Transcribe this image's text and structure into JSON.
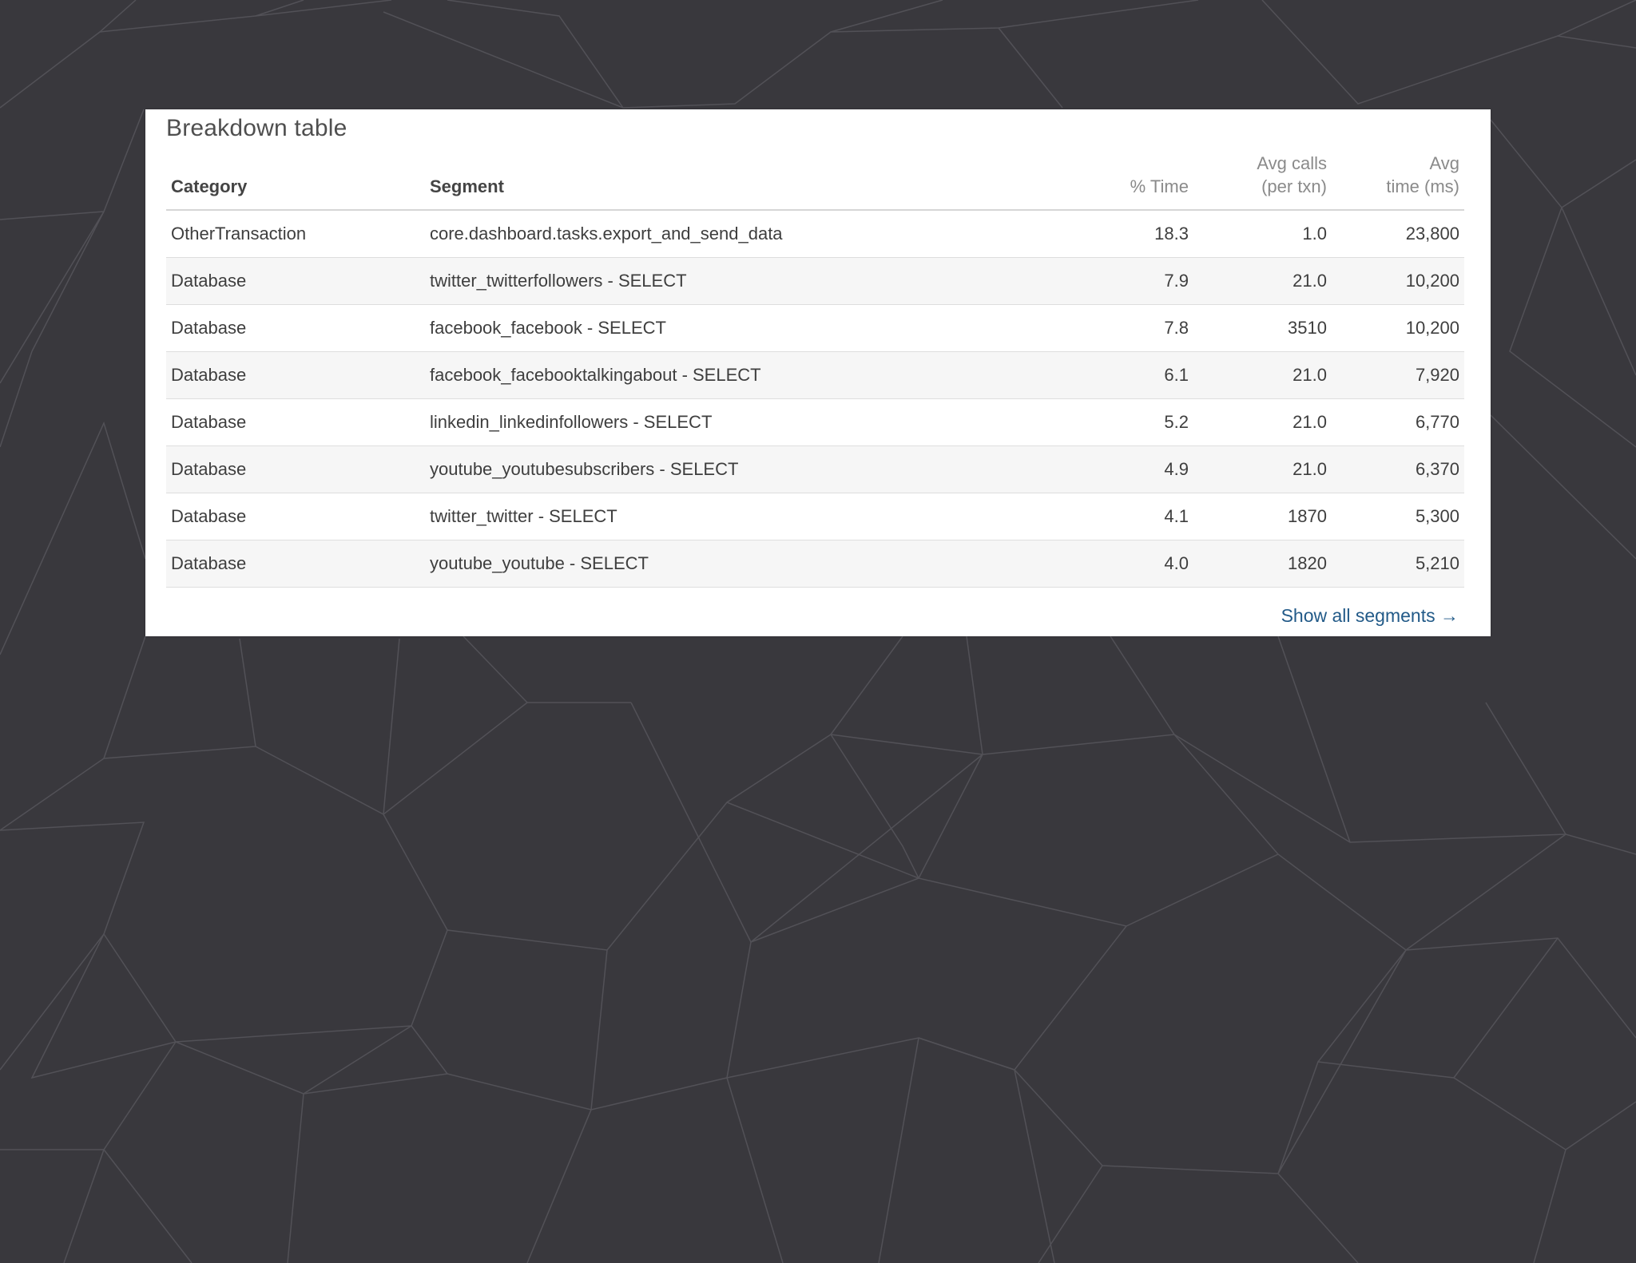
{
  "panel": {
    "title": "Breakdown table",
    "show_all_label": "Show all segments →"
  },
  "table": {
    "headers": {
      "category": "Category",
      "segment": "Segment",
      "pct_time": "% Time",
      "avg_calls_line1": "Avg calls",
      "avg_calls_line2": "(per txn)",
      "avg_time_line1": "Avg",
      "avg_time_line2": "time (ms)"
    },
    "rows": [
      {
        "category": "OtherTransaction",
        "segment": "core.dashboard.tasks.export_and_send_data",
        "pct_time": "18.3",
        "avg_calls": "1.0",
        "avg_time": "23,800"
      },
      {
        "category": "Database",
        "segment": "twitter_twitterfollowers - SELECT",
        "pct_time": "7.9",
        "avg_calls": "21.0",
        "avg_time": "10,200"
      },
      {
        "category": "Database",
        "segment": "facebook_facebook - SELECT",
        "pct_time": "7.8",
        "avg_calls": "3510",
        "avg_time": "10,200"
      },
      {
        "category": "Database",
        "segment": "facebook_facebooktalkingabout - SELECT",
        "pct_time": "6.1",
        "avg_calls": "21.0",
        "avg_time": "7,920"
      },
      {
        "category": "Database",
        "segment": "linkedin_linkedinfollowers - SELECT",
        "pct_time": "5.2",
        "avg_calls": "21.0",
        "avg_time": "6,770"
      },
      {
        "category": "Database",
        "segment": "youtube_youtubesubscribers - SELECT",
        "pct_time": "4.9",
        "avg_calls": "21.0",
        "avg_time": "6,370"
      },
      {
        "category": "Database",
        "segment": "twitter_twitter - SELECT",
        "pct_time": "4.1",
        "avg_calls": "1870",
        "avg_time": "5,300"
      },
      {
        "category": "Database",
        "segment": "youtube_youtube - SELECT",
        "pct_time": "4.0",
        "avg_calls": "1820",
        "avg_time": "5,210"
      }
    ]
  },
  "colors": {
    "background": "#39383d",
    "pattern_line": "#55545a",
    "link": "#225a88"
  }
}
